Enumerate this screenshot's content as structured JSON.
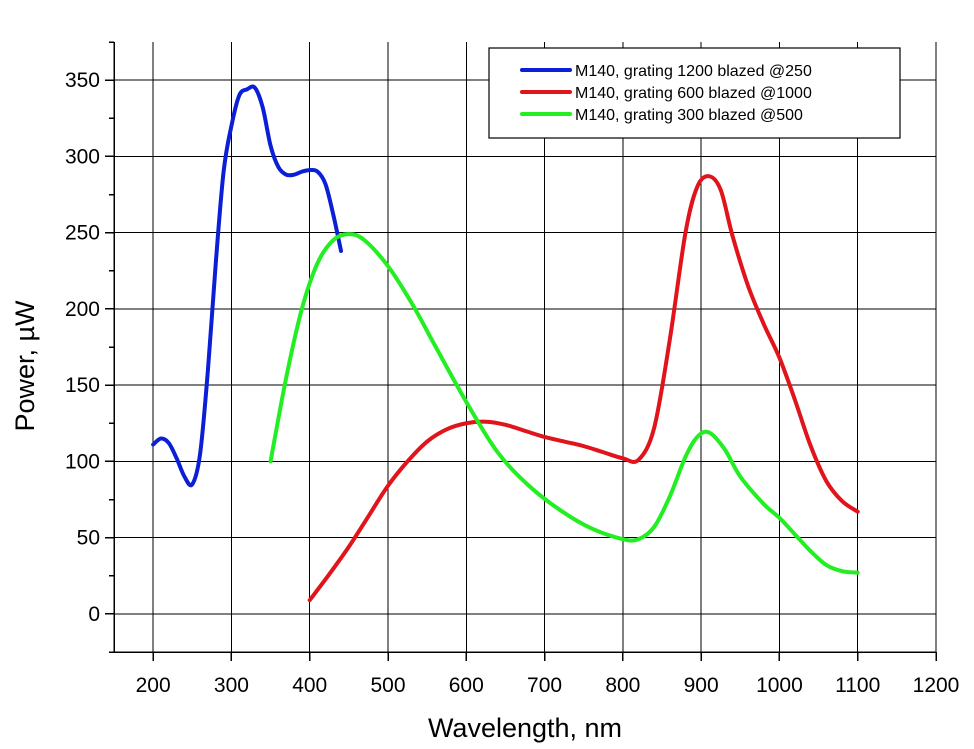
{
  "chart_data": {
    "type": "line",
    "title": "",
    "xlabel": "Wavelength, nm",
    "ylabel": "Power, µW",
    "xlim": [
      150,
      1200
    ],
    "ylim": [
      -25,
      375
    ],
    "xticks": [
      200,
      300,
      400,
      500,
      600,
      700,
      800,
      900,
      1000,
      1100,
      1200
    ],
    "yticks": [
      0,
      50,
      100,
      150,
      200,
      250,
      300,
      350
    ],
    "grid": true,
    "legend_position": "top-right",
    "series": [
      {
        "name": "M140, grating 1200 blazed @250",
        "color": "#0a1fd6",
        "x": [
          200,
          210,
          220,
          230,
          240,
          250,
          260,
          270,
          280,
          290,
          300,
          310,
          320,
          330,
          340,
          350,
          360,
          370,
          380,
          390,
          400,
          410,
          420,
          430,
          440
        ],
        "y": [
          111,
          115,
          112,
          102,
          90,
          85,
          105,
          160,
          230,
          290,
          320,
          340,
          344,
          345,
          332,
          307,
          293,
          288,
          288,
          290,
          291,
          290,
          282,
          262,
          238
        ]
      },
      {
        "name": "M140, grating 600 blazed @1000",
        "color": "#e0141a",
        "x": [
          400,
          425,
          450,
          475,
          500,
          525,
          550,
          575,
          600,
          625,
          650,
          675,
          700,
          725,
          750,
          775,
          800,
          820,
          840,
          860,
          880,
          895,
          910,
          925,
          940,
          960,
          980,
          1000,
          1020,
          1040,
          1060,
          1080,
          1100
        ],
        "y": [
          9,
          26,
          44,
          64,
          84,
          100,
          113,
          121,
          125,
          126,
          124,
          120,
          116,
          113,
          110,
          106,
          102,
          101,
          122,
          180,
          250,
          280,
          287,
          278,
          248,
          215,
          190,
          168,
          140,
          110,
          87,
          74,
          67
        ]
      },
      {
        "name": "M140, grating 300 blazed @500",
        "color": "#22ee22",
        "x": [
          350,
          370,
          390,
          410,
          430,
          450,
          470,
          500,
          530,
          560,
          600,
          640,
          680,
          720,
          760,
          800,
          820,
          840,
          860,
          880,
          895,
          910,
          930,
          950,
          980,
          1000,
          1020,
          1040,
          1060,
          1080,
          1100
        ],
        "y": [
          100,
          155,
          200,
          230,
          245,
          249,
          245,
          228,
          204,
          176,
          139,
          106,
          84,
          68,
          56,
          49,
          49,
          57,
          77,
          103,
          116,
          119,
          108,
          90,
          72,
          63,
          52,
          41,
          32,
          28,
          27
        ]
      }
    ]
  }
}
